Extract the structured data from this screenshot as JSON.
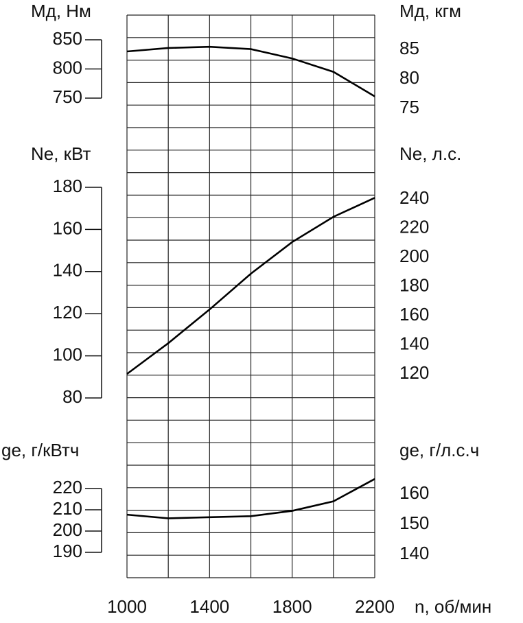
{
  "chart_data": [
    {
      "type": "line",
      "ylabel": "Мд, Нм",
      "y2label": "Мд, кгм",
      "x": [
        1000,
        1200,
        1400,
        1600,
        1800,
        2000,
        2200
      ],
      "series": [
        {
          "color": "#000000",
          "values": [
            830,
            836,
            838,
            834,
            818,
            795,
            753
          ]
        }
      ],
      "ylim": [
        750,
        850
      ],
      "yticks": [
        750,
        800,
        850
      ],
      "y2lim": [
        75,
        85
      ],
      "y2ticks": [
        75,
        80,
        85
      ]
    },
    {
      "type": "line",
      "ylabel": "Ne, кВт",
      "y2label": "Ne, л.с.",
      "x": [
        1000,
        1200,
        1400,
        1600,
        1800,
        2000,
        2200
      ],
      "series": [
        {
          "color": "#000000",
          "values": [
            91.4,
            106,
            122,
            139,
            154,
            166,
            175
          ]
        }
      ],
      "ylim": [
        80,
        180
      ],
      "yticks": [
        80,
        100,
        120,
        140,
        160,
        180
      ],
      "y2lim": [
        120,
        240
      ],
      "y2ticks": [
        120,
        140,
        160,
        180,
        200,
        220,
        240
      ]
    },
    {
      "type": "line",
      "ylabel": "ge, г/кВтч",
      "y2label": "ge, г/л.с.ч",
      "xlabel": "n, об/мин",
      "x": [
        1000,
        1200,
        1400,
        1600,
        1800,
        2000,
        2200
      ],
      "series": [
        {
          "color": "#000000",
          "values": [
            207.7,
            206,
            206.5,
            207,
            209.5,
            214,
            224.5
          ]
        }
      ],
      "xlim": [
        1000,
        2200
      ],
      "xticks": [
        1000,
        1400,
        1800,
        2200
      ],
      "ylim": [
        190,
        220
      ],
      "yticks": [
        190,
        200,
        210,
        220
      ],
      "y2lim": [
        140,
        160
      ],
      "y2ticks": [
        140,
        150,
        160
      ]
    }
  ]
}
